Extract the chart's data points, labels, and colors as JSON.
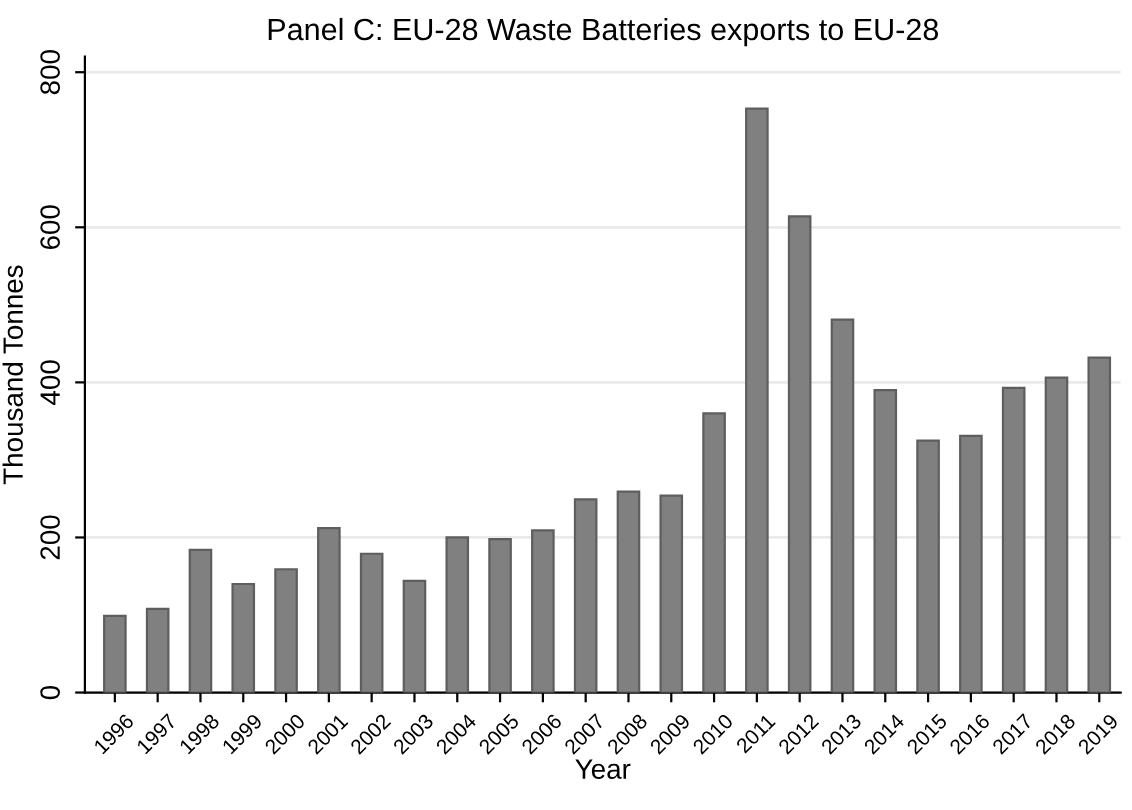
{
  "chart_data": {
    "type": "bar",
    "title": "Panel C: EU-28 Waste Batteries exports to EU-28",
    "xlabel": "Year",
    "ylabel": "Thousand Tonnes",
    "categories": [
      "1996",
      "1997",
      "1998",
      "1999",
      "2000",
      "2001",
      "2002",
      "2003",
      "2004",
      "2005",
      "2006",
      "2007",
      "2008",
      "2009",
      "2010",
      "2011",
      "2012",
      "2013",
      "2014",
      "2015",
      "2016",
      "2017",
      "2018",
      "2019"
    ],
    "values": [
      99,
      108,
      184,
      140,
      159,
      212,
      179,
      144,
      200,
      198,
      209,
      249,
      259,
      254,
      360,
      753,
      614,
      481,
      390,
      325,
      331,
      393,
      406,
      432
    ],
    "color": "#808080",
    "ylim": [
      0,
      820
    ],
    "yticks": [
      0,
      200,
      400,
      600,
      800
    ],
    "grid": "y",
    "legend": false
  }
}
